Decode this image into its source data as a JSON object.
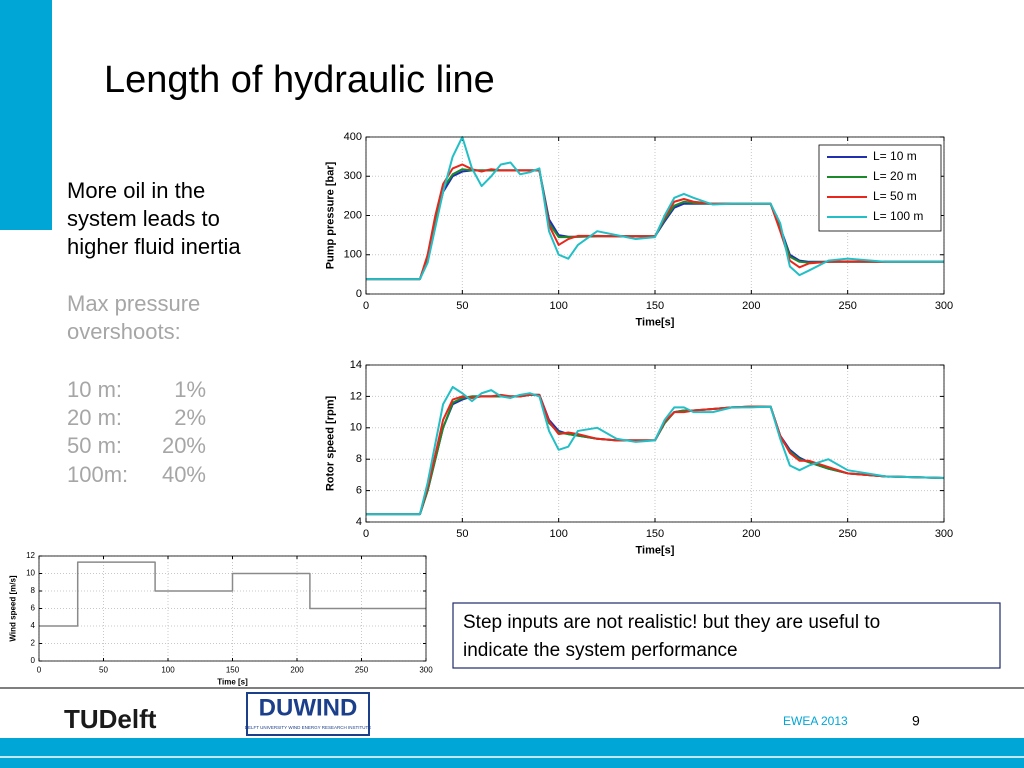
{
  "title": "Length of hydraulic line",
  "text": {
    "lines": [
      "More oil in the",
      "system leads to",
      "higher fluid inertia"
    ],
    "subheading": [
      "Max pressure",
      "overshoots:"
    ],
    "overshoots": [
      [
        "10 m:",
        "1%"
      ],
      [
        "20 m:",
        "2%"
      ],
      [
        "50 m:",
        "20%"
      ],
      [
        "100m:",
        "40%"
      ]
    ]
  },
  "note": [
    "Step inputs are not realistic! but they are useful to",
    "indicate the system performance"
  ],
  "footer": {
    "logo_left": "TUDelft",
    "logo_right": "DUWIND",
    "logo_right_sub": "DELFT UNIVERSITY WIND ENERGY RESEARCH INSTITUTE",
    "event": "EWEA 2013",
    "page": "9"
  },
  "chart_data": [
    {
      "type": "line",
      "xlabel": "Time[s]",
      "ylabel": "Pump pressure [bar]",
      "x": [
        0,
        28,
        32,
        36,
        40,
        45,
        50,
        55,
        60,
        65,
        70,
        75,
        80,
        85,
        90,
        95,
        100,
        105,
        110,
        120,
        130,
        140,
        150,
        155,
        160,
        165,
        170,
        180,
        190,
        200,
        210,
        215,
        220,
        225,
        230,
        240,
        250,
        270,
        300
      ],
      "series": [
        {
          "name": "L= 10 m",
          "color": "#1f2fb0",
          "values": [
            38,
            38,
            90,
            180,
            260,
            300,
            312,
            315,
            315,
            315,
            315,
            315,
            315,
            315,
            315,
            190,
            150,
            146,
            146,
            147,
            147,
            147,
            147,
            185,
            220,
            230,
            230,
            230,
            230,
            230,
            230,
            170,
            100,
            85,
            82,
            82,
            82,
            82,
            82
          ]
        },
        {
          "name": "L= 20 m",
          "color": "#1a8a2a",
          "values": [
            38,
            38,
            95,
            190,
            270,
            305,
            318,
            315,
            315,
            315,
            315,
            315,
            315,
            315,
            315,
            180,
            145,
            145,
            146,
            147,
            147,
            147,
            147,
            190,
            225,
            235,
            232,
            230,
            230,
            230,
            230,
            165,
            95,
            82,
            80,
            82,
            82,
            82,
            82
          ]
        },
        {
          "name": "L= 50 m",
          "color": "#e8261c",
          "values": [
            38,
            38,
            100,
            200,
            280,
            320,
            330,
            318,
            312,
            318,
            315,
            315,
            315,
            315,
            315,
            175,
            125,
            140,
            148,
            148,
            147,
            147,
            147,
            195,
            235,
            242,
            235,
            230,
            230,
            230,
            230,
            160,
            85,
            68,
            78,
            82,
            83,
            82,
            82
          ]
        },
        {
          "name": "L= 100 m",
          "color": "#22bfc6",
          "values": [
            38,
            38,
            80,
            170,
            260,
            350,
            400,
            320,
            275,
            300,
            330,
            335,
            305,
            310,
            320,
            160,
            100,
            90,
            125,
            160,
            150,
            140,
            145,
            200,
            245,
            255,
            245,
            228,
            230,
            230,
            230,
            180,
            70,
            48,
            60,
            85,
            90,
            82,
            82
          ]
        }
      ],
      "xlim": [
        0,
        300
      ],
      "ylim": [
        0,
        400
      ],
      "xticks": [
        0,
        50,
        100,
        150,
        200,
        250,
        300
      ],
      "yticks": [
        0,
        100,
        200,
        300,
        400
      ],
      "grid": true,
      "legend": "upper right"
    },
    {
      "type": "line",
      "xlabel": "Time[s]",
      "ylabel": "Rotor speed [rpm]",
      "x": [
        0,
        28,
        32,
        36,
        40,
        45,
        50,
        55,
        60,
        65,
        70,
        75,
        80,
        85,
        90,
        95,
        100,
        105,
        110,
        120,
        130,
        140,
        150,
        155,
        160,
        165,
        170,
        180,
        190,
        200,
        210,
        215,
        220,
        225,
        230,
        240,
        250,
        270,
        300
      ],
      "series": [
        {
          "color": "#1f2fb0",
          "values": [
            4.5,
            4.5,
            6,
            8,
            10,
            11.5,
            11.8,
            12,
            12,
            12,
            12,
            12,
            12,
            12.1,
            12.1,
            10.5,
            9.8,
            9.6,
            9.5,
            9.3,
            9.2,
            9.2,
            9.2,
            10.3,
            11,
            11.1,
            11.1,
            11.2,
            11.3,
            11.35,
            11.35,
            9.5,
            8.6,
            8.1,
            7.8,
            7.4,
            7.1,
            6.9,
            6.8
          ]
        },
        {
          "color": "#1a8a2a",
          "values": [
            4.5,
            4.5,
            6,
            8,
            10,
            11.6,
            11.9,
            12,
            12,
            12,
            12,
            12,
            12,
            12.1,
            12.1,
            10.3,
            9.7,
            9.6,
            9.5,
            9.3,
            9.2,
            9.2,
            9.2,
            10.3,
            11,
            11.1,
            11.1,
            11.2,
            11.3,
            11.35,
            11.35,
            9.4,
            8.5,
            8,
            7.8,
            7.4,
            7.1,
            6.9,
            6.8
          ]
        },
        {
          "color": "#e8261c",
          "values": [
            4.5,
            4.5,
            6.2,
            8.3,
            10.5,
            11.8,
            12,
            11.9,
            12,
            12,
            12.1,
            12,
            12,
            12.1,
            12.1,
            10.4,
            9.6,
            9.7,
            9.6,
            9.3,
            9.2,
            9.2,
            9.2,
            10.4,
            11,
            11,
            11.1,
            11.2,
            11.3,
            11.35,
            11.35,
            9.5,
            8.4,
            7.9,
            7.9,
            7.5,
            7.1,
            6.9,
            6.8
          ]
        },
        {
          "color": "#22bfc6",
          "values": [
            4.5,
            4.5,
            6.5,
            9,
            11.5,
            12.6,
            12.2,
            11.7,
            12.2,
            12.4,
            12,
            11.9,
            12.1,
            12.2,
            12,
            9.8,
            8.6,
            8.8,
            9.8,
            10,
            9.3,
            9.1,
            9.2,
            10.5,
            11.3,
            11.3,
            11,
            11,
            11.3,
            11.3,
            11.35,
            9.3,
            7.6,
            7.3,
            7.6,
            8,
            7.3,
            6.9,
            6.8
          ]
        }
      ],
      "xlim": [
        0,
        300
      ],
      "ylim": [
        4,
        14
      ],
      "xticks": [
        0,
        50,
        100,
        150,
        200,
        250,
        300
      ],
      "yticks": [
        4,
        6,
        8,
        10,
        12,
        14
      ],
      "grid": true
    },
    {
      "type": "line",
      "xlabel": "Time [s]",
      "ylabel": "Wind speed [m/s]",
      "x": [
        0,
        30,
        30,
        90,
        90,
        150,
        150,
        210,
        210,
        300
      ],
      "values": [
        4,
        4,
        11.3,
        11.3,
        8,
        8,
        10,
        10,
        6,
        6
      ],
      "color": "#8a8a8a",
      "xlim": [
        0,
        300
      ],
      "ylim": [
        0,
        12
      ],
      "xticks": [
        0,
        50,
        100,
        150,
        200,
        250,
        300
      ],
      "yticks": [
        0,
        2,
        4,
        6,
        8,
        10,
        12
      ],
      "grid": true
    }
  ]
}
